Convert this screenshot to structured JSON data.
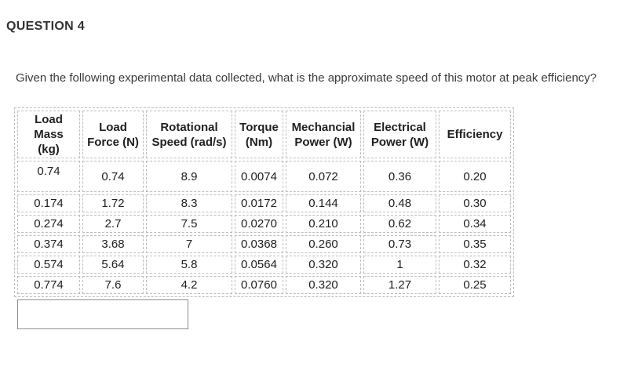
{
  "header": {
    "title": "QUESTION 4"
  },
  "question": {
    "text": "Given the following experimental data collected, what is the approximate speed of this motor at peak efficiency?"
  },
  "table": {
    "headers": [
      "Load Mass (kg)",
      "Load Force (N)",
      "Rotational Speed (rad/s)",
      "Torque (Nm)",
      "Mechancial Power (W)",
      "Electrical Power (W)",
      "Efficiency"
    ],
    "rows": [
      [
        "0.74",
        "0.74",
        "8.9",
        "0.0074",
        "0.072",
        "0.36",
        "0.20"
      ],
      [
        "0.174",
        "1.72",
        "8.3",
        "0.0172",
        "0.144",
        "0.48",
        "0.30"
      ],
      [
        "0.274",
        "2.7",
        "7.5",
        "0.0270",
        "0.210",
        "0.62",
        "0.34"
      ],
      [
        "0.374",
        "3.68",
        "7",
        "0.0368",
        "0.260",
        "0.73",
        "0.35"
      ],
      [
        "0.574",
        "5.64",
        "5.8",
        "0.0564",
        "0.320",
        "1",
        "0.32"
      ],
      [
        "0.774",
        "7.6",
        "4.2",
        "0.0760",
        "0.320",
        "1.27",
        "0.25"
      ]
    ]
  },
  "answer": {
    "value": ""
  },
  "colors": {
    "cell_border": "#bdbdbd",
    "input_border": "#8c8c8c",
    "text": "#202020",
    "heading_text": "#333333"
  }
}
